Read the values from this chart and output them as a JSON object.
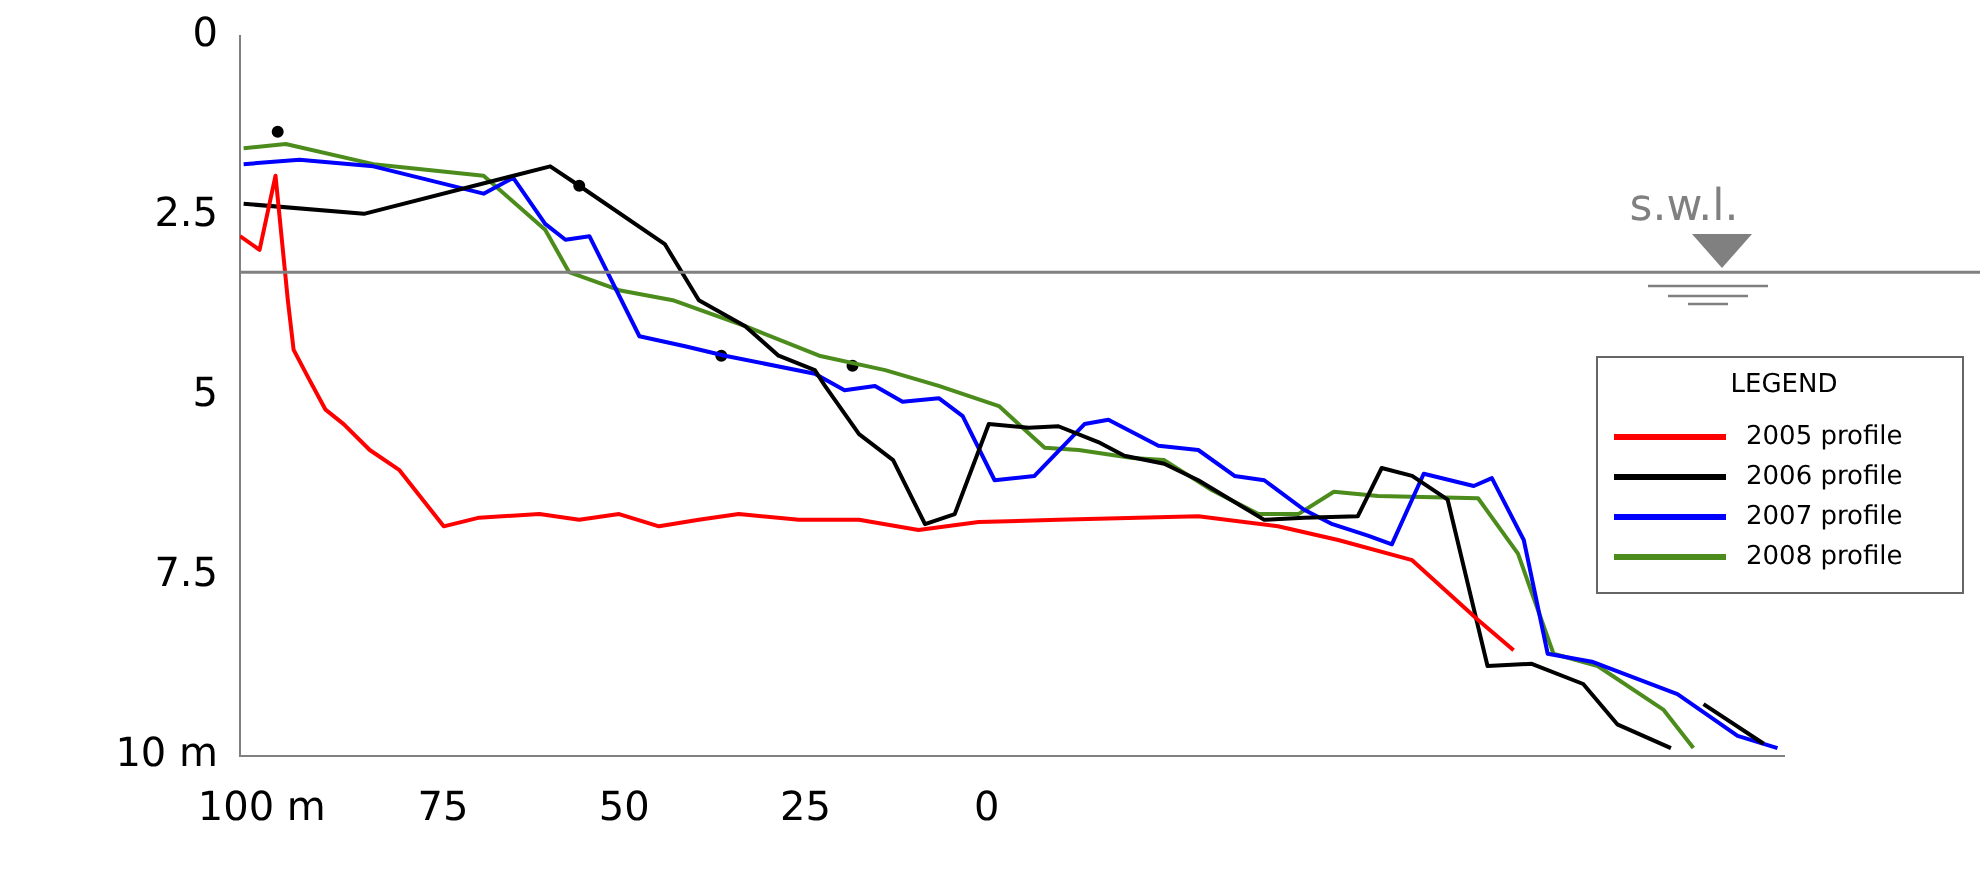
{
  "chart_data": {
    "type": "line",
    "legend_title": "LEGEND",
    "legend": "right",
    "grid": false,
    "marker": "none",
    "line_style": "solid",
    "xlim": [
      103,
      -110
    ],
    "xticks": [
      {
        "value": 100,
        "label": "100 m"
      },
      75,
      50,
      25,
      0
    ],
    "ylim": [
      10,
      0
    ],
    "yticks": [
      0,
      2.5,
      5,
      7.5,
      {
        "value": 10,
        "label": "10 m"
      }
    ],
    "ref_lines": [
      {
        "axis": "y",
        "value": 3.28,
        "label": "s.w.l.",
        "color": "#808080"
      }
    ],
    "series": [
      {
        "name": "2005 profile",
        "color": "#ff0000",
        "x": [
          103,
          100.3,
          98.1,
          96.4,
          95.6,
          93.4,
          91.2,
          88.7,
          85.1,
          81.0,
          74.9,
          70.0,
          61.7,
          56.2,
          50.7,
          45.2,
          39.7,
          34.2,
          25.9,
          17.6,
          9.4,
          1.1,
          -9.9,
          -20.9,
          -29.2,
          -40.2,
          -48.5,
          -58.7,
          -67.8,
          -72.7
        ],
        "values": [
          2.78,
          2.97,
          1.94,
          3.67,
          4.36,
          4.78,
          5.19,
          5.39,
          5.75,
          6.03,
          6.81,
          6.69,
          6.64,
          6.72,
          6.64,
          6.81,
          6.72,
          6.64,
          6.72,
          6.72,
          6.86,
          6.75,
          6.72,
          6.69,
          6.67,
          6.81,
          7.0,
          7.28,
          8.11,
          8.53
        ]
      },
      {
        "name": "2006 profile",
        "color": "#000000",
        "x": [
          102.5,
          85.9,
          60.2,
          56.2,
          44.4,
          39.7,
          33.3,
          28.7,
          23.7,
          22.3,
          17.6,
          12.9,
          8.5,
          4.4,
          -0.3,
          -5.8,
          -9.9,
          -15.4,
          -19.0,
          -24.5,
          -29.2,
          -38.3,
          -43.8,
          -51.2,
          -54.5,
          -58.7,
          -63.6,
          -69.1,
          -75.2,
          -82.3,
          -87.0,
          -94.4,
          -96,
          -98.9,
          -107.2
        ],
        "values": [
          2.33,
          2.47,
          1.81,
          2.08,
          2.89,
          3.67,
          4.03,
          4.44,
          4.64,
          4.86,
          5.53,
          5.89,
          6.78,
          6.64,
          5.39,
          5.44,
          5.42,
          5.64,
          5.83,
          5.94,
          6.17,
          6.72,
          6.69,
          6.67,
          6.0,
          6.11,
          6.44,
          8.75,
          8.72,
          9.0,
          9.56,
          9.89,
          null,
          9.28,
          9.83
        ]
      },
      {
        "name": "2007 profile",
        "color": "#0000ff",
        "x": [
          102.5,
          94.8,
          84.6,
          69.4,
          65.3,
          60.9,
          58.1,
          54.8,
          47.9,
          41.6,
          36.1,
          23.7,
          19.6,
          15.4,
          11.6,
          6.6,
          3.3,
          -1.1,
          -6.6,
          -13.5,
          -16.8,
          -23.7,
          -29.2,
          -34.2,
          -38.3,
          -43.8,
          -47.7,
          -52.6,
          -55.9,
          -60.3,
          -67.2,
          -69.7,
          -74.1,
          -77.4,
          -83.5,
          -95.3,
          -103.6,
          -109.1
        ],
        "values": [
          1.78,
          1.72,
          1.81,
          2.19,
          1.97,
          2.61,
          2.83,
          2.78,
          4.17,
          4.31,
          4.44,
          4.69,
          4.92,
          4.86,
          5.08,
          5.03,
          5.28,
          6.17,
          6.11,
          5.39,
          5.33,
          5.69,
          5.75,
          6.11,
          6.17,
          6.58,
          6.78,
          6.94,
          7.06,
          6.08,
          6.25,
          6.14,
          7.0,
          8.58,
          8.69,
          9.14,
          9.72,
          9.89
        ]
      },
      {
        "name": "2008 profile",
        "color": "#4c8c1c",
        "x": [
          102.5,
          96.7,
          84.6,
          69.4,
          60.9,
          57.6,
          50.7,
          43.3,
          33.3,
          23.1,
          14.0,
          6.6,
          -1.7,
          -8.0,
          -12.7,
          -20.1,
          -24.5,
          -31.1,
          -37.5,
          -43.0,
          -47.9,
          -54.0,
          -67.8,
          -73.3,
          -78.2,
          -84.3,
          -93.4,
          -97.5
        ],
        "values": [
          1.56,
          1.5,
          1.78,
          1.94,
          2.69,
          3.28,
          3.53,
          3.67,
          4.03,
          4.44,
          4.64,
          4.86,
          5.14,
          5.72,
          5.75,
          5.86,
          5.89,
          6.31,
          6.64,
          6.64,
          6.33,
          6.39,
          6.42,
          7.19,
          8.58,
          8.75,
          9.36,
          9.89
        ]
      },
      {
        "type": "scatter",
        "color": "#000000",
        "marker": "circle",
        "x": [
          97.8,
          56.2,
          36.6,
          18.5
        ],
        "values": [
          1.33,
          2.08,
          4.44,
          4.58
        ]
      }
    ]
  }
}
